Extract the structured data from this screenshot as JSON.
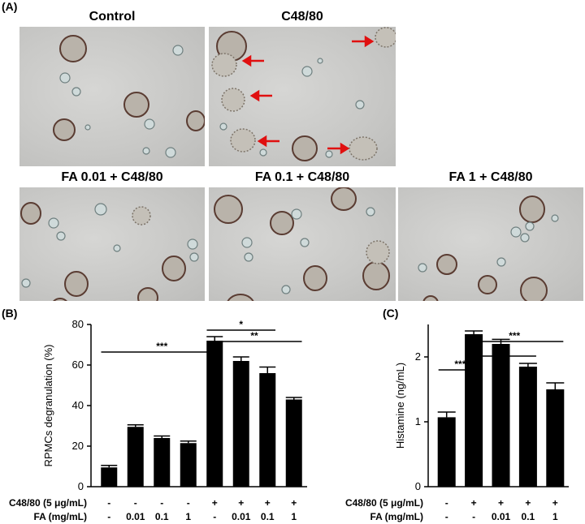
{
  "panel_labels": {
    "a": "(A)",
    "b": "(B)",
    "c": "(C)"
  },
  "micrographs": [
    {
      "title": "Control"
    },
    {
      "title": "C48/80"
    },
    {
      "title": "FA 0.01 + C48/80"
    },
    {
      "title": "FA 0.1 + C48/80"
    },
    {
      "title": "FA 1 + C48/80"
    }
  ],
  "chart_data": [
    {
      "type": "bar",
      "ylabel": "RPMCs degranulation (%)",
      "ylim": [
        0,
        80
      ],
      "yticks": [
        0,
        20,
        40,
        60,
        80
      ],
      "categories": [
        "1",
        "2",
        "3",
        "4",
        "5",
        "6",
        "7",
        "8"
      ],
      "values": [
        9.5,
        29.5,
        24,
        21.5,
        72,
        62,
        56,
        43
      ],
      "errors": [
        1,
        1,
        1,
        1,
        2,
        2,
        3,
        1
      ],
      "row_labels": [
        {
          "label": "C48/80 (5 μg/mL)",
          "values": [
            "-",
            "-",
            "-",
            "-",
            "+",
            "+",
            "+",
            "+"
          ]
        },
        {
          "label": "FA (mg/mL)",
          "values": [
            "-",
            "0.01",
            "0.1",
            "1",
            "-",
            "0.01",
            "0.1",
            "1"
          ]
        }
      ],
      "significance": [
        {
          "from": 1,
          "to": 5,
          "label": "***"
        },
        {
          "from": 5,
          "to": 7,
          "label": "*"
        },
        {
          "from": 5,
          "to": 8,
          "label": "**"
        }
      ]
    },
    {
      "type": "bar",
      "ylabel": "Histamine (ng/mL)",
      "ylim": [
        0,
        2.5
      ],
      "yticks": [
        0,
        1,
        2
      ],
      "categories": [
        "1",
        "2",
        "3",
        "4",
        "5"
      ],
      "values": [
        1.07,
        2.35,
        2.2,
        1.85,
        1.5
      ],
      "errors": [
        0.08,
        0.05,
        0.07,
        0.05,
        0.1
      ],
      "row_labels": [
        {
          "label": "C48/80 (5 μg/mL)",
          "values": [
            "-",
            "+",
            "+",
            "+",
            "+"
          ]
        },
        {
          "label": "FA (mg/mL)",
          "values": [
            "-",
            "-",
            "0.01",
            "0.1",
            "1"
          ]
        }
      ],
      "significance": [
        {
          "from": 1,
          "to": 2,
          "label": "***"
        },
        {
          "from": 2,
          "to": 4,
          "label": "**"
        },
        {
          "from": 2,
          "to": 5,
          "label": "***"
        }
      ]
    }
  ]
}
